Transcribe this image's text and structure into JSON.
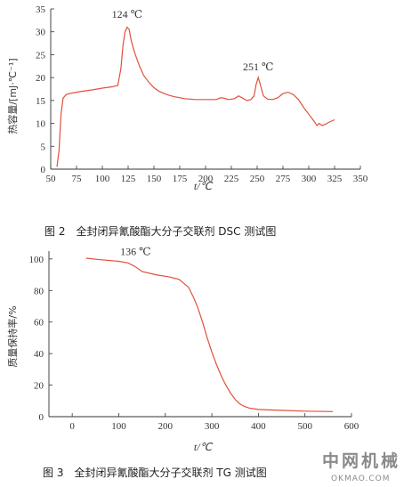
{
  "chart_data": [
    {
      "type": "line",
      "caption": "图 2　全封闭异氰酸酯大分子交联剂 DSC 测试图",
      "xlabel": "t/℃",
      "ylabel": "热容量/[mJ·℃⁻¹]",
      "xlim": [
        50,
        350
      ],
      "ylim": [
        0,
        35
      ],
      "xticks": [
        50,
        75,
        100,
        125,
        150,
        175,
        200,
        225,
        250,
        275,
        300,
        325,
        350
      ],
      "yticks": [
        0,
        5,
        10,
        15,
        20,
        25,
        30,
        35
      ],
      "line_color": "#e0503c",
      "annotations": [
        {
          "text": "124 ℃",
          "x": 124,
          "y": 31.5
        },
        {
          "text": "251 ℃",
          "x": 251,
          "y": 20
        }
      ],
      "series": [
        {
          "x": [
            56,
            58,
            60,
            62,
            65,
            70,
            80,
            90,
            100,
            110,
            115,
            118,
            120,
            122,
            124,
            126,
            128,
            132,
            136,
            140,
            145,
            150,
            155,
            160,
            165,
            170,
            180,
            190,
            200,
            210,
            215,
            218,
            222,
            228,
            232,
            236,
            240,
            244,
            247,
            249,
            251,
            253,
            256,
            260,
            265,
            270,
            275,
            280,
            285,
            290,
            295,
            300,
            305,
            308,
            310,
            313,
            316,
            320,
            325
          ],
          "y": [
            0.5,
            4,
            12,
            15.5,
            16.3,
            16.6,
            17,
            17.3,
            17.7,
            18,
            18.3,
            22,
            27,
            30,
            31,
            30.5,
            28,
            25,
            22.5,
            20.5,
            19,
            17.8,
            17,
            16.5,
            16.1,
            15.8,
            15.4,
            15.2,
            15.2,
            15.2,
            15.6,
            15.5,
            15.2,
            15.4,
            16,
            15.5,
            15,
            15.2,
            16,
            18.5,
            20,
            18.5,
            16,
            15.3,
            15.2,
            15.6,
            16.5,
            16.8,
            16.3,
            15.2,
            13.5,
            12,
            10.5,
            9.5,
            10,
            9.5,
            9.8,
            10.3,
            10.8
          ]
        }
      ]
    },
    {
      "type": "line",
      "caption": "图 3　全封闭异氰酸酯大分子交联剂 TG 测试图",
      "xlabel": "t/℃",
      "ylabel": "质量保持率/%",
      "xlim": [
        -50,
        600
      ],
      "ylim": [
        0,
        105
      ],
      "xticks": [
        0,
        100,
        200,
        300,
        400,
        500,
        600
      ],
      "yticks": [
        0,
        20,
        40,
        60,
        80,
        100
      ],
      "line_color": "#e0503c",
      "annotations": [
        {
          "text": "136 ℃",
          "x": 136,
          "y": 98
        }
      ],
      "series": [
        {
          "x": [
            30,
            60,
            100,
            120,
            136,
            150,
            180,
            210,
            230,
            250,
            260,
            270,
            280,
            290,
            300,
            310,
            320,
            330,
            340,
            350,
            360,
            370,
            380,
            390,
            400,
            420,
            450,
            500,
            560
          ],
          "y": [
            100.5,
            99.5,
            98.5,
            97.5,
            95,
            92,
            90,
            88.5,
            87,
            82,
            76,
            69,
            60,
            50,
            41,
            33,
            26,
            20,
            15,
            11,
            8,
            6.5,
            5.5,
            5,
            4.6,
            4.3,
            4,
            3.5,
            3.2
          ]
        }
      ]
    }
  ],
  "watermark": {
    "title": "中网机械",
    "url": "OKMAO.COM"
  }
}
